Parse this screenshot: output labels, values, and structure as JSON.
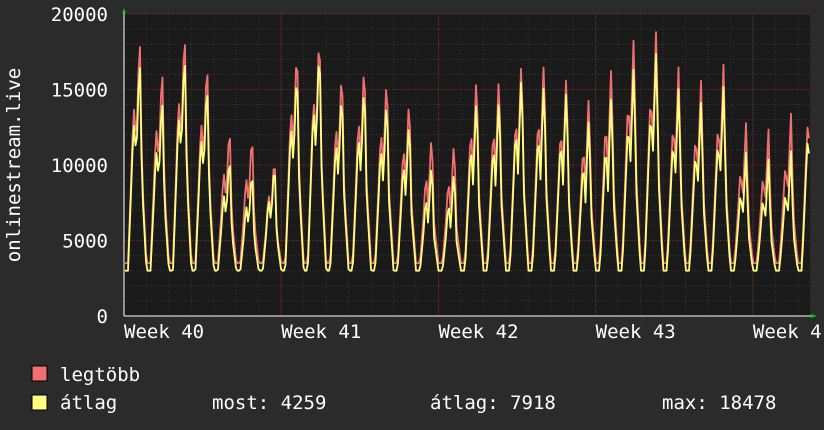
{
  "chart_data": {
    "type": "line",
    "title": "",
    "ylabel": "onlinestream.live",
    "xlabel": "",
    "ylim": [
      0,
      20000
    ],
    "yticks": [
      0,
      5000,
      10000,
      15000,
      20000
    ],
    "xtick_labels": [
      "Week 40",
      "Week 41",
      "Week 42",
      "Week 43",
      "Week 4"
    ],
    "grid": true,
    "series": [
      {
        "name": "legtöbb",
        "color": "#f07070",
        "daily_peaks": [
          19000,
          17000,
          19500,
          17500,
          13000,
          12500,
          11000,
          18500,
          19500,
          17000,
          17500,
          16500,
          15000,
          12500,
          12000,
          16500,
          16500,
          17500,
          17500,
          16500,
          15000,
          17000,
          19000,
          19500,
          17000,
          16000,
          17000,
          13000,
          12500,
          13500,
          17500,
          17000,
          16000,
          17500,
          18500,
          19000,
          19500
        ]
      },
      {
        "name": "átlag",
        "color": "#ffff80",
        "daily_peaks": [
          17500,
          15000,
          18000,
          16000,
          11000,
          10000,
          10500,
          17000,
          18500,
          15500,
          16000,
          15000,
          13500,
          10500,
          10000,
          15000,
          15000,
          16500,
          16000,
          15500,
          13500,
          15000,
          17000,
          18000,
          15500,
          14500,
          15500,
          11000,
          10500,
          11000,
          16000,
          15500,
          14500,
          16000,
          17000,
          17500,
          17500
        ]
      }
    ]
  },
  "legend": {
    "max_label": "legtöbb",
    "avg_label": "átlag",
    "stats": {
      "current": "most: 4259",
      "average": "átlag: 7918",
      "maximum": "max: 18478"
    }
  }
}
